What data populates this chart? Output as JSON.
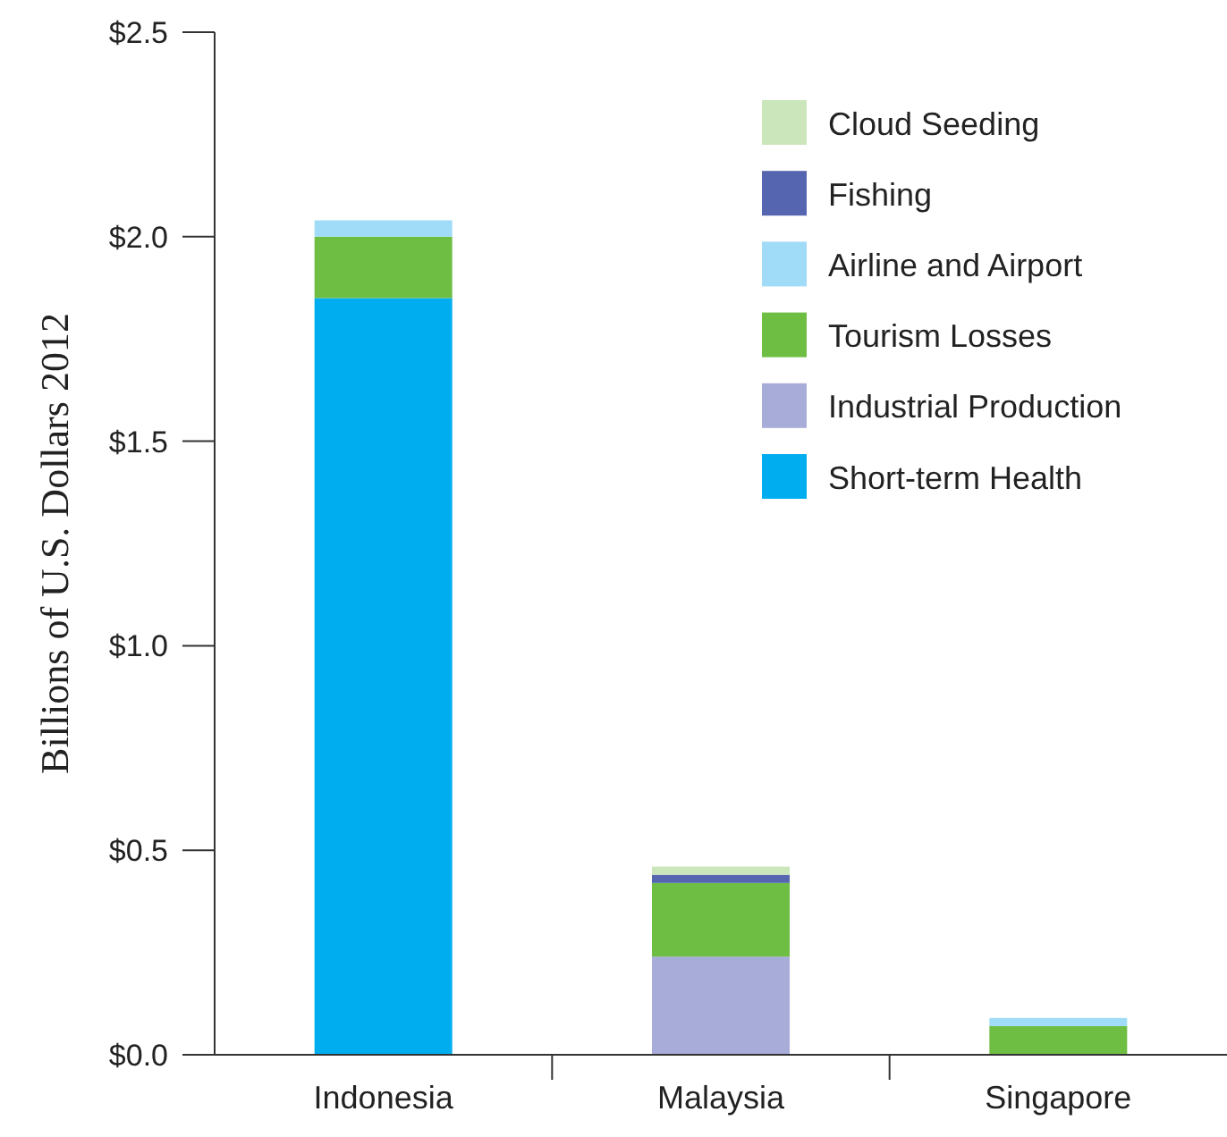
{
  "chart_data": {
    "type": "bar",
    "stacked": true,
    "ylabel": "Billions of U.S. Dollars 2012",
    "categories": [
      "Indonesia",
      "Malaysia",
      "Singapore"
    ],
    "series": [
      {
        "name": "Short-term Health",
        "color": "#00aeef",
        "values": [
          1.85,
          0,
          0
        ]
      },
      {
        "name": "Industrial Production",
        "color": "#a8acd8",
        "values": [
          0,
          0.24,
          0
        ]
      },
      {
        "name": "Tourism Losses",
        "color": "#6fbe44",
        "values": [
          0.15,
          0.18,
          0.07
        ]
      },
      {
        "name": "Airline and Airport",
        "color": "#a0dcf7",
        "values": [
          0.04,
          0,
          0.02
        ]
      },
      {
        "name": "Fishing",
        "color": "#5565b0",
        "values": [
          0,
          0.02,
          0
        ]
      },
      {
        "name": "Cloud Seeding",
        "color": "#cce6bb",
        "values": [
          0,
          0.02,
          0
        ]
      }
    ],
    "ylim": [
      0,
      2.5
    ],
    "yticks": [
      {
        "value": 0,
        "label": "$0.0"
      },
      {
        "value": 0.5,
        "label": "$0.5"
      },
      {
        "value": 1,
        "label": "$1.0"
      },
      {
        "value": 1.5,
        "label": "$1.5"
      },
      {
        "value": 2,
        "label": "$2.0"
      },
      {
        "value": 2.5,
        "label": "$2.5"
      }
    ],
    "legend": "top right",
    "grid": false
  }
}
